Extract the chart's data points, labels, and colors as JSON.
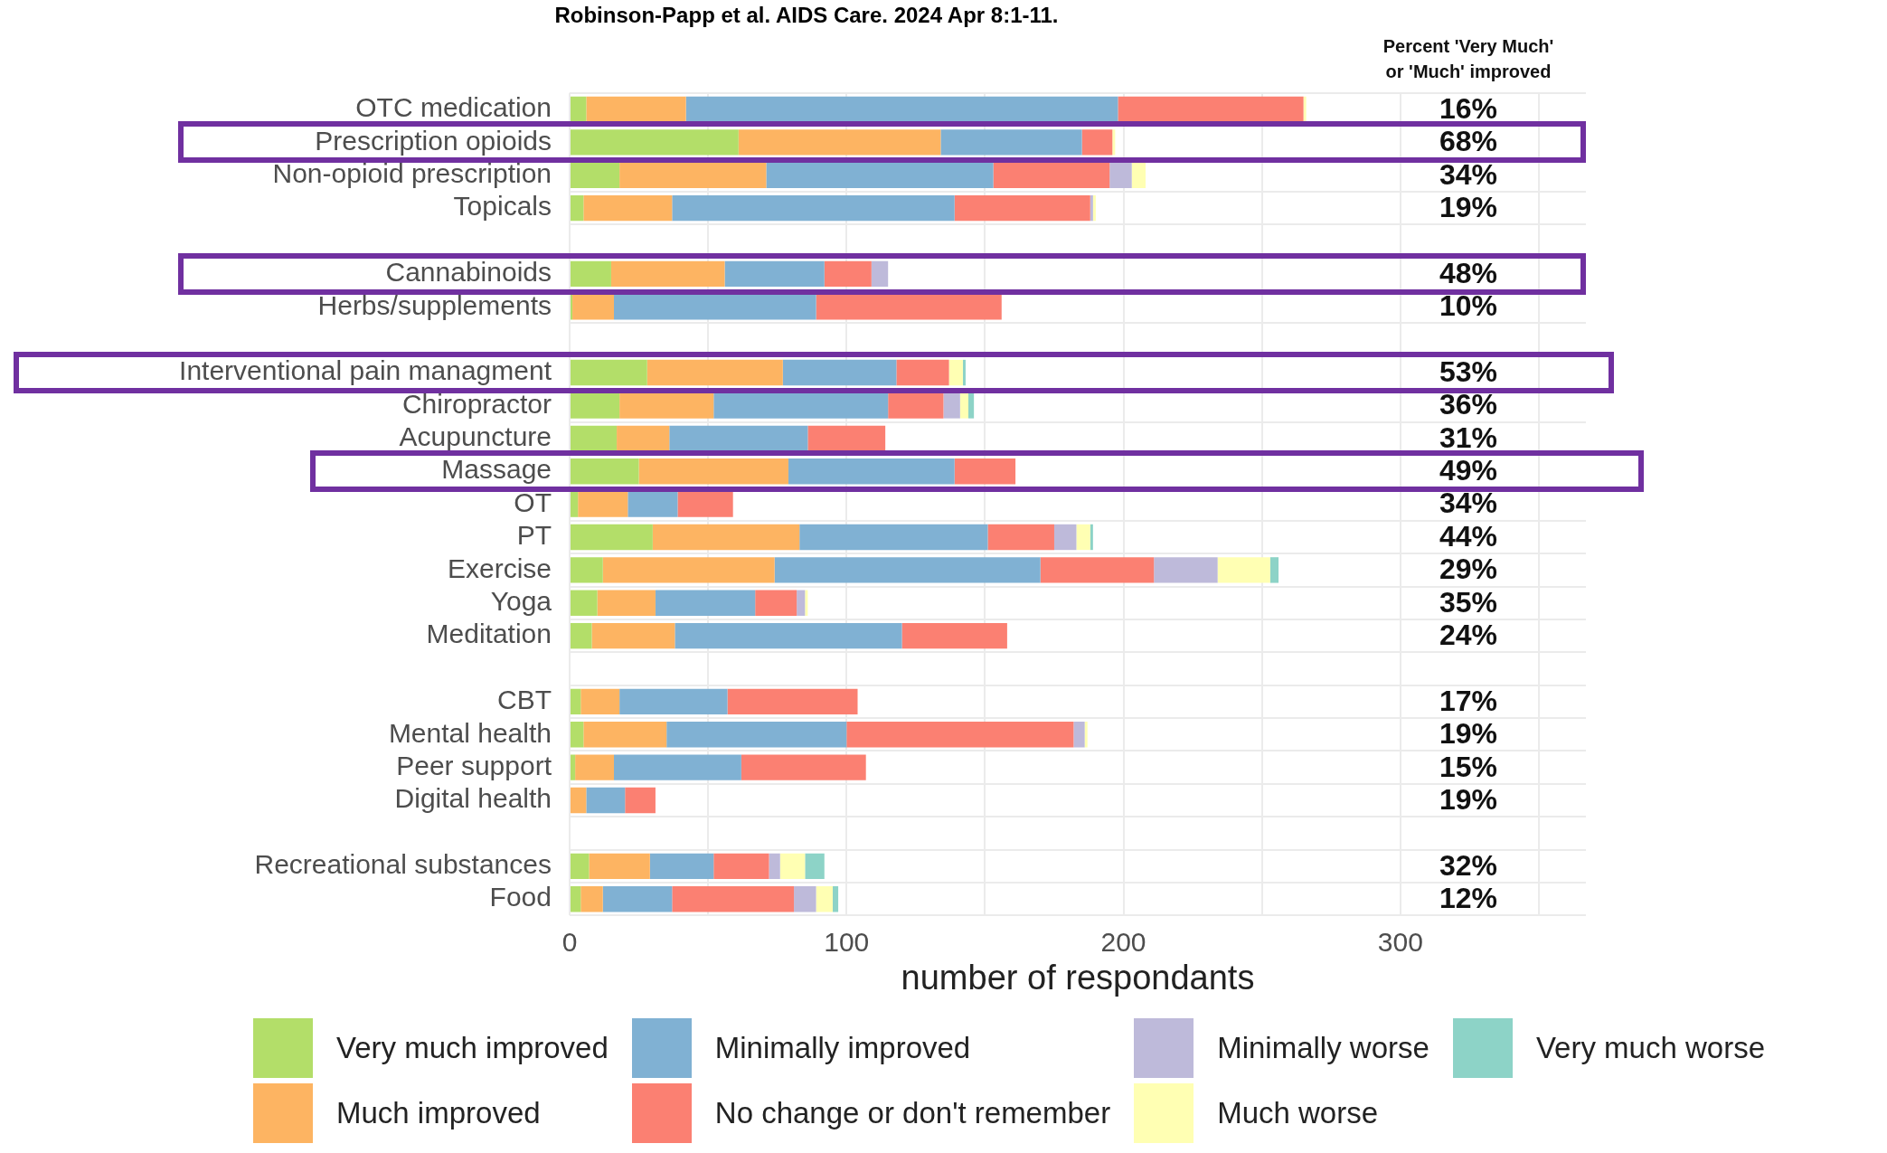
{
  "chart_data": {
    "type": "bar",
    "orientation": "horizontal",
    "stacked": true,
    "title": "Robinson-Papp et al. AIDS Care. 2024 Apr 8:1-11.",
    "xlabel": "number of respondants",
    "categories": [
      "OTC medication",
      "Prescription opioids",
      "Non-opioid prescription",
      "Topicals",
      null,
      "Cannabinoids",
      "Herbs/supplements",
      null,
      "Interventional pain managment",
      "Chiropractor",
      "Acupuncture",
      "Massage",
      "OT",
      "PT",
      "Exercise",
      "Yoga",
      "Meditation",
      null,
      "CBT",
      "Mental health",
      "Peer support",
      "Digital health",
      null,
      "Recreational substances",
      "Food"
    ],
    "series": [
      {
        "name": "Very much improved",
        "color": "#b3de69",
        "values": [
          6,
          61,
          18,
          5,
          null,
          15,
          1,
          null,
          28,
          18,
          17,
          25,
          3,
          30,
          12,
          10,
          8,
          null,
          4,
          5,
          2,
          0,
          null,
          7,
          4
        ]
      },
      {
        "name": "Much improved",
        "color": "#fdb462",
        "values": [
          36,
          73,
          53,
          32,
          null,
          41,
          15,
          null,
          49,
          34,
          19,
          54,
          18,
          53,
          62,
          21,
          30,
          null,
          14,
          30,
          14,
          6,
          null,
          22,
          8
        ]
      },
      {
        "name": "Minimally improved",
        "color": "#80b1d3",
        "values": [
          156,
          51,
          82,
          102,
          null,
          36,
          73,
          null,
          41,
          63,
          50,
          60,
          18,
          68,
          96,
          36,
          82,
          null,
          39,
          65,
          46,
          14,
          null,
          23,
          25
        ]
      },
      {
        "name": "No change or don't remember",
        "color": "#fb8072",
        "values": [
          67,
          11,
          42,
          49,
          null,
          17,
          67,
          null,
          19,
          20,
          28,
          22,
          20,
          24,
          41,
          15,
          38,
          null,
          47,
          82,
          45,
          11,
          null,
          20,
          44
        ]
      },
      {
        "name": "Minimally worse",
        "color": "#bebada",
        "values": [
          0,
          0,
          8,
          1,
          null,
          6,
          0,
          null,
          0,
          6,
          0,
          0,
          0,
          8,
          23,
          3,
          0,
          null,
          0,
          4,
          0,
          0,
          null,
          4,
          8
        ]
      },
      {
        "name": "Much worse",
        "color": "#ffffb3",
        "values": [
          1,
          1,
          5,
          1,
          null,
          0,
          0,
          null,
          5,
          3,
          0,
          0,
          0,
          5,
          19,
          1,
          0,
          null,
          0,
          1,
          0,
          0,
          null,
          9,
          6
        ]
      },
      {
        "name": "Very much worse",
        "color": "#8dd3c7",
        "values": [
          0,
          0,
          0,
          0,
          null,
          0,
          0,
          null,
          1,
          2,
          0,
          0,
          0,
          1,
          3,
          0,
          0,
          null,
          0,
          0,
          0,
          0,
          null,
          7,
          2
        ]
      }
    ],
    "xlim": [
      0,
      367
    ],
    "xticks": [
      0,
      {
        "value": 50,
        "label": null
      },
      100,
      {
        "value": 150,
        "label": null
      },
      200,
      {
        "value": 250,
        "label": null
      },
      300,
      {
        "value": 350,
        "label": null
      }
    ],
    "grid": true,
    "legend": "bottom",
    "annotations": [
      "Percent 'Very Much' or 'Much' improved",
      "16%",
      "68%",
      "34%",
      "19%",
      "48%",
      "10%",
      "53%",
      "36%",
      "31%",
      "49%",
      "34%",
      "44%",
      "29%",
      "35%",
      "24%",
      "17%",
      "19%",
      "15%",
      "19%",
      "32%",
      "12%"
    ]
  }
}
